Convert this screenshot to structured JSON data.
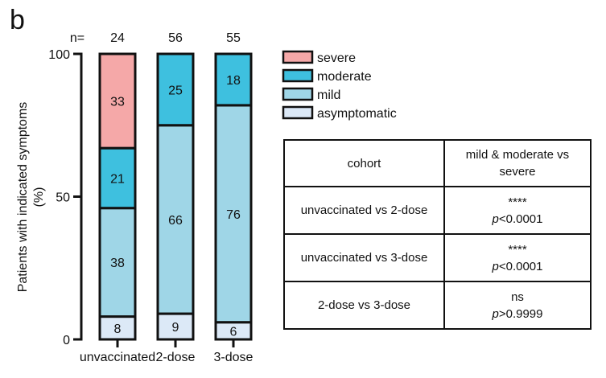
{
  "panel_label": "b",
  "n_label": "n=",
  "chart_data": {
    "type": "bar",
    "stacked": true,
    "categories": [
      "unvaccinated",
      "2-dose",
      "3-dose"
    ],
    "n": [
      "24",
      "56",
      "55"
    ],
    "ylabel": "Patients with indicated symptoms (%)",
    "ylim": [
      0,
      100
    ],
    "yticks": [
      0,
      50,
      100
    ],
    "legend_position": "right-top",
    "series": [
      {
        "name": "asymptomatic",
        "color": "#dce9f7",
        "values": [
          8,
          9,
          6
        ]
      },
      {
        "name": "mild",
        "color": "#9fd6e7",
        "values": [
          38,
          66,
          76
        ]
      },
      {
        "name": "moderate",
        "color": "#3ec0df",
        "values": [
          21,
          25,
          18
        ]
      },
      {
        "name": "severe",
        "color": "#f5a8a8",
        "values": [
          33,
          0,
          0
        ]
      }
    ]
  },
  "table": {
    "headers": [
      "cohort",
      "mild & moderate vs severe"
    ],
    "rows": [
      {
        "cohort": "unvaccinated vs 2-dose",
        "stars": "****",
        "p_symbol": "p",
        "p_rest": "<0.0001"
      },
      {
        "cohort": "unvaccinated vs 3-dose",
        "stars": "****",
        "p_symbol": "p",
        "p_rest": "<0.0001"
      },
      {
        "cohort": "2-dose vs 3-dose",
        "stars": "ns",
        "p_symbol": "p",
        "p_rest": ">0.9999"
      }
    ]
  }
}
